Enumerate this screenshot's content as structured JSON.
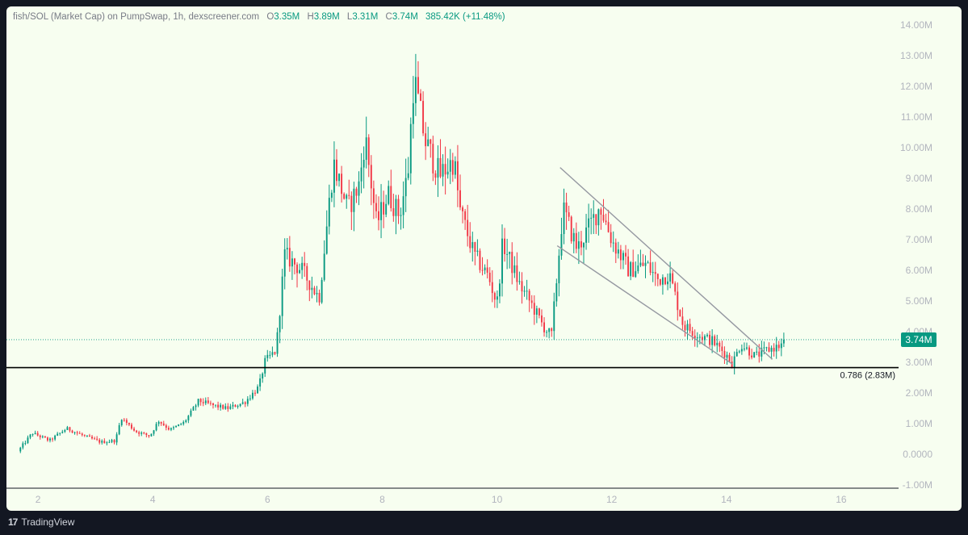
{
  "legend": {
    "symbol": "fish/SOL (Market Cap) on PumpSwap, 1h, dexscreener.com",
    "open_key": "O",
    "open": "3.35M",
    "high_key": "H",
    "high": "3.89M",
    "low_key": "L",
    "low": "3.31M",
    "close_key": "C",
    "close": "3.74M",
    "change": "385.42K (+11.48%)"
  },
  "footer": {
    "logo_glyph": "17",
    "brand": "TradingView"
  },
  "colors": {
    "up": "#089981",
    "down": "#f23645",
    "background": "#f7fef0",
    "axis_text": "#b2b5be",
    "trendline": "#9598a1",
    "level_line": "#000000"
  },
  "chart_data": {
    "type": "candlestick",
    "title": "fish/SOL (Market Cap) on PumpSwap, 1h, dexscreener.com",
    "xlabel": "",
    "ylabel": "",
    "x_range": [
      1.45,
      17.0
    ],
    "ylim": [
      -1.1,
      14.6
    ],
    "y_ticks": [
      -1,
      0,
      1,
      2,
      3,
      4,
      5,
      6,
      7,
      8,
      9,
      10,
      11,
      12,
      13,
      14
    ],
    "y_tick_labels": [
      "-1.00M",
      "0.0000",
      "1.00M",
      "2.00M",
      "3.00M",
      "4.00M",
      "5.00M",
      "6.00M",
      "7.00M",
      "8.00M",
      "9.00M",
      "10.00M",
      "11.00M",
      "12.00M",
      "13.00M",
      "14.00M"
    ],
    "x_ticks": [
      2,
      4,
      6,
      8,
      10,
      12,
      14,
      16
    ],
    "x_tick_labels": [
      "2",
      "4",
      "6",
      "8",
      "10",
      "12",
      "14",
      "16"
    ],
    "grid": false,
    "current_price": 3.74,
    "current_price_label": "3.74M",
    "fib_level": {
      "value": 2.83,
      "label": "0.786 (2.83M)"
    },
    "price_path": [
      [
        1.65,
        0.1
      ],
      [
        1.9,
        0.7
      ],
      [
        2.2,
        0.45
      ],
      [
        2.5,
        0.85
      ],
      [
        2.8,
        0.6
      ],
      [
        3.1,
        0.4
      ],
      [
        3.35,
        0.45
      ],
      [
        3.45,
        1.2
      ],
      [
        3.7,
        0.75
      ],
      [
        3.95,
        0.6
      ],
      [
        4.1,
        1.1
      ],
      [
        4.3,
        0.8
      ],
      [
        4.55,
        1.05
      ],
      [
        4.8,
        1.75
      ],
      [
        5.05,
        1.6
      ],
      [
        5.3,
        1.5
      ],
      [
        5.6,
        1.7
      ],
      [
        5.85,
        2.2
      ],
      [
        5.95,
        3.0
      ],
      [
        6.15,
        3.4
      ],
      [
        6.3,
        6.5
      ],
      [
        6.6,
        6.0
      ],
      [
        6.9,
        5.1
      ],
      [
        7.15,
        9.5
      ],
      [
        7.4,
        8.0
      ],
      [
        7.6,
        8.8
      ],
      [
        7.7,
        10.4
      ],
      [
        7.9,
        7.5
      ],
      [
        8.1,
        8.5
      ],
      [
        8.3,
        7.8
      ],
      [
        8.45,
        9.2
      ],
      [
        8.55,
        12.3
      ],
      [
        8.75,
        10.2
      ],
      [
        9.0,
        9.1
      ],
      [
        9.25,
        9.6
      ],
      [
        9.35,
        8.0
      ],
      [
        9.6,
        6.5
      ],
      [
        9.85,
        5.8
      ],
      [
        10.0,
        4.9
      ],
      [
        10.1,
        6.9
      ],
      [
        10.4,
        5.5
      ],
      [
        10.6,
        4.9
      ],
      [
        10.8,
        4.2
      ],
      [
        10.95,
        3.85
      ],
      [
        11.15,
        8.0
      ],
      [
        11.4,
        6.7
      ],
      [
        11.6,
        7.4
      ],
      [
        11.8,
        8.1
      ],
      [
        12.0,
        7.0
      ],
      [
        12.3,
        6.0
      ],
      [
        12.6,
        6.2
      ],
      [
        12.8,
        5.7
      ],
      [
        13.0,
        5.9
      ],
      [
        13.25,
        4.2
      ],
      [
        13.5,
        3.9
      ],
      [
        13.75,
        3.7
      ],
      [
        14.0,
        3.25
      ],
      [
        14.1,
        2.95
      ],
      [
        14.25,
        3.6
      ],
      [
        14.5,
        3.2
      ],
      [
        14.7,
        3.4
      ],
      [
        14.95,
        3.55
      ],
      [
        15.0,
        3.74
      ]
    ],
    "annotations": [
      {
        "type": "trendline",
        "from": [
          11.1,
          9.35
        ],
        "to": [
          14.8,
          3.1
        ]
      },
      {
        "type": "trendline",
        "from": [
          11.05,
          6.8
        ],
        "to": [
          14.1,
          2.95
        ]
      },
      {
        "type": "horizontal",
        "value": 2.83,
        "label": "0.786 (2.83M)"
      },
      {
        "type": "horizontal-dotted",
        "value": 3.74
      }
    ]
  }
}
